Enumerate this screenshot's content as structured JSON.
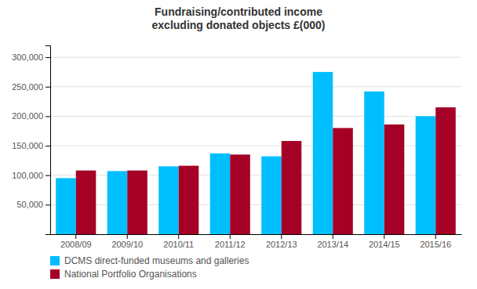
{
  "chart_data": {
    "type": "bar",
    "title": "Fundraising/contributed income\nexcluding donated objects £(000)",
    "categories": [
      "2008/09",
      "2009/10",
      "2010/11",
      "2011/12",
      "2012/13",
      "2013/14",
      "2014/15",
      "2015/16"
    ],
    "series": [
      {
        "name": "DCMS direct-funded museums and galleries",
        "color": "#00BFFF",
        "values": [
          95000,
          107000,
          115000,
          137000,
          132000,
          275000,
          242000,
          200000
        ]
      },
      {
        "name": "National Portfolio Organisations",
        "color": "#A50026",
        "values": [
          108000,
          108000,
          116000,
          135000,
          158000,
          180000,
          186000,
          215000
        ]
      }
    ],
    "ylim": [
      0,
      320000
    ],
    "yticks": [
      {
        "value": 50000,
        "label": "50,000"
      },
      {
        "value": 100000,
        "label": "100,000"
      },
      {
        "value": 150000,
        "label": "150,000"
      },
      {
        "value": 200000,
        "label": "200,000"
      },
      {
        "value": 250000,
        "label": "250,000"
      },
      {
        "value": 300000,
        "label": "300,000"
      }
    ],
    "grid": true,
    "legend": "lower left"
  }
}
